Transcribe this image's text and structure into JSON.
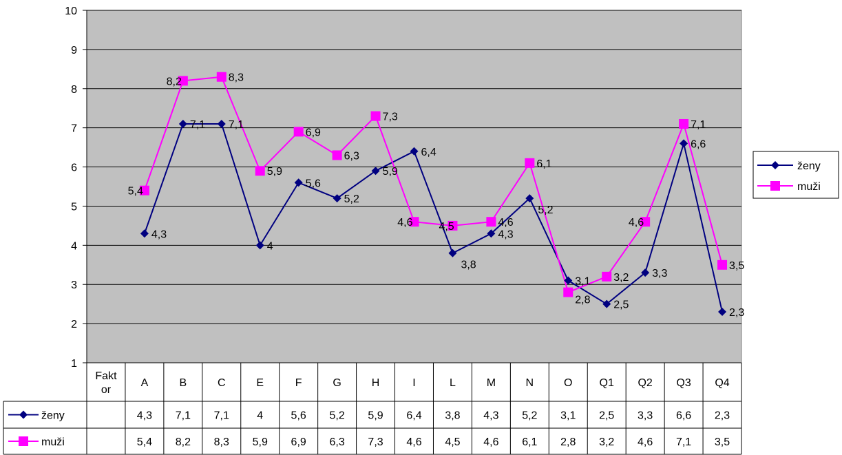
{
  "chart_data": {
    "type": "line",
    "categories": [
      "Fakt or",
      "A",
      "B",
      "C",
      "E",
      "F",
      "G",
      "H",
      "I",
      "L",
      "M",
      "N",
      "O",
      "Q1",
      "Q2",
      "Q3",
      "Q4"
    ],
    "ylim": [
      1,
      10
    ],
    "yticks": [
      "1",
      "2",
      "3",
      "4",
      "5",
      "6",
      "7",
      "8",
      "9",
      "10"
    ],
    "grid": true,
    "legend_position": "right",
    "plot_background": "#c0c0c0",
    "series": [
      {
        "name": "ženy",
        "color": "#000080",
        "marker": "diamond",
        "values": [
          null,
          4.3,
          7.1,
          7.1,
          4,
          5.6,
          5.2,
          5.9,
          6.4,
          3.8,
          4.3,
          5.2,
          3.1,
          2.5,
          3.3,
          6.6,
          2.3
        ],
        "labels": [
          "",
          "4,3",
          "7,1",
          "7,1",
          "4",
          "5,6",
          "5,2",
          "5,9",
          "6,4",
          "3,8",
          "4,3",
          "5,2",
          "3,1",
          "2,5",
          "3,3",
          "6,6",
          "2,3"
        ]
      },
      {
        "name": "muži",
        "color": "#ff00ff",
        "marker": "square",
        "values": [
          null,
          5.4,
          8.2,
          8.3,
          5.9,
          6.9,
          6.3,
          7.3,
          4.6,
          4.5,
          4.6,
          6.1,
          2.8,
          3.2,
          4.6,
          7.1,
          3.5
        ],
        "labels": [
          "",
          "5,4",
          "8,2",
          "8,3",
          "5,9",
          "6,9",
          "6,3",
          "7,3",
          "4,6",
          "4,5",
          "4,6",
          "6,1",
          "2,8",
          "3,2",
          "4,6",
          "7,1",
          "3,5"
        ]
      }
    ]
  }
}
